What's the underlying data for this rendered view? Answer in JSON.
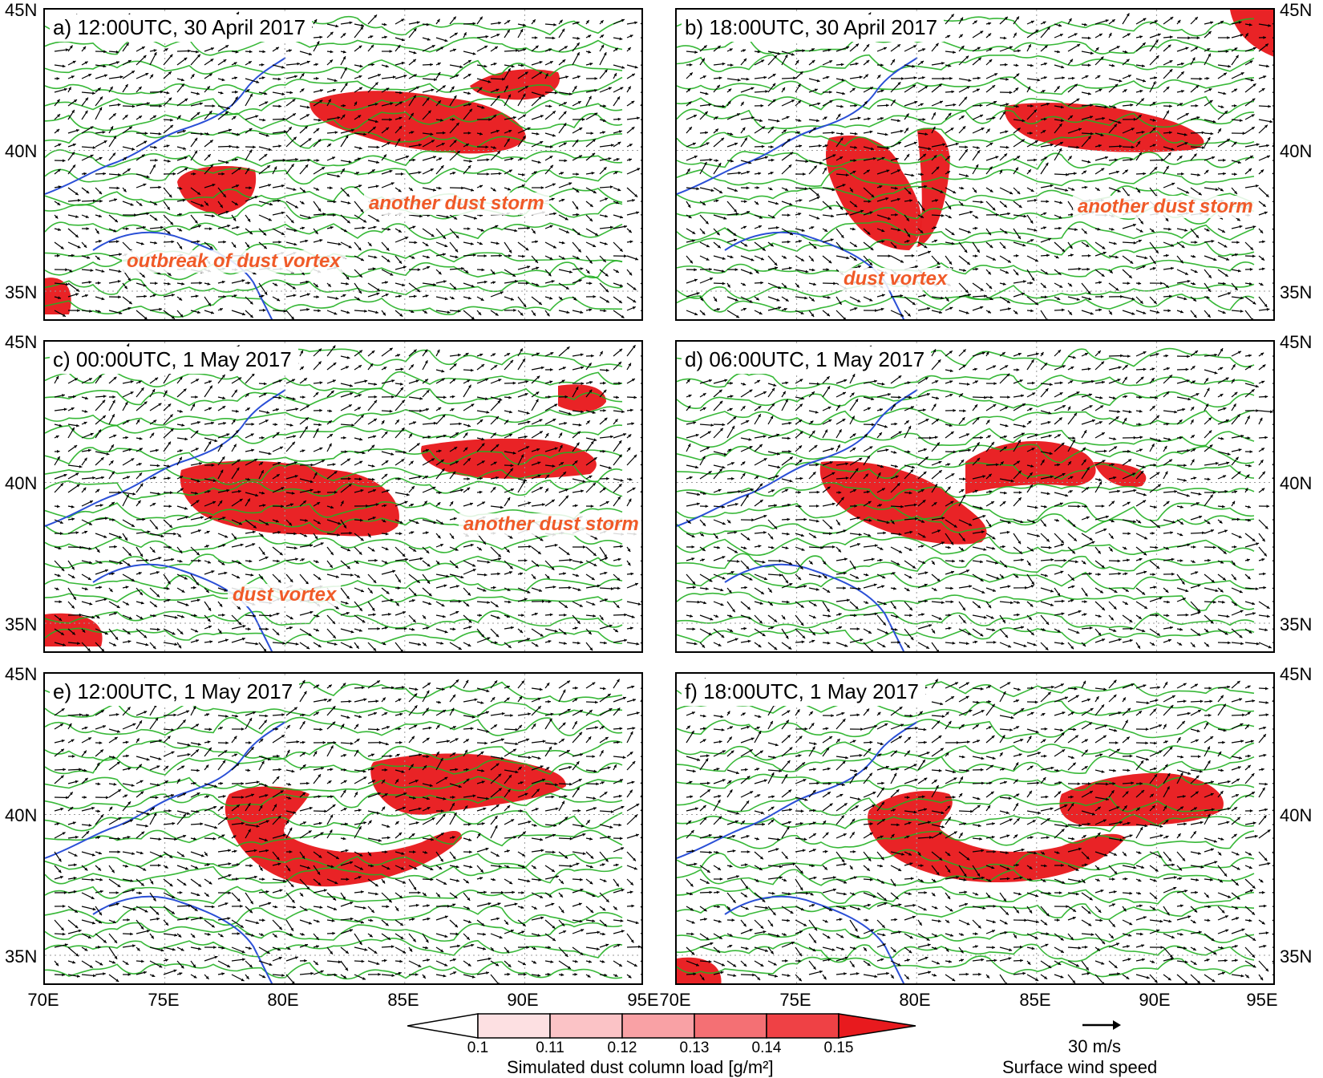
{
  "panels": [
    {
      "title": "a) 12:00UTC, 30 April 2017",
      "annotations": [
        "another dust storm",
        "outbreak of dust vortex"
      ]
    },
    {
      "title": "b) 18:00UTC, 30 April 2017",
      "annotations": [
        "another dust storm",
        "dust vortex"
      ]
    },
    {
      "title": "c) 00:00UTC, 1 May 2017",
      "annotations": [
        "another dust storm",
        "dust vortex"
      ]
    },
    {
      "title": "d) 06:00UTC, 1 May 2017",
      "annotations": []
    },
    {
      "title": "e) 12:00UTC, 1 May 2017",
      "annotations": []
    },
    {
      "title": "f) 18:00UTC, 1 May 2017",
      "annotations": []
    }
  ],
  "axes": {
    "lat_labels": [
      "45N",
      "40N",
      "35N"
    ],
    "lon_labels": [
      "70E",
      "75E",
      "80E",
      "85E",
      "90E",
      "95E"
    ],
    "lat_range": [
      34,
      45
    ],
    "lon_range": [
      70,
      95
    ]
  },
  "colorbar": {
    "title": "Simulated dust column load [g/m²]",
    "ticks": [
      "0.1",
      "0.11",
      "0.12",
      "0.13",
      "0.14",
      "0.15"
    ],
    "colors": [
      "#ffffff",
      "#fde0e2",
      "#fbc3c6",
      "#f9a1a5",
      "#f47074",
      "#ef4145",
      "#e81a1e"
    ]
  },
  "wind_legend": {
    "reference": "30 m/s",
    "title": "Surface wind speed"
  },
  "colors": {
    "dust": "#e81a1e",
    "terrain_contour": "#22b022",
    "boundary": "#2a4fd6",
    "annotation": "#f05a28"
  }
}
